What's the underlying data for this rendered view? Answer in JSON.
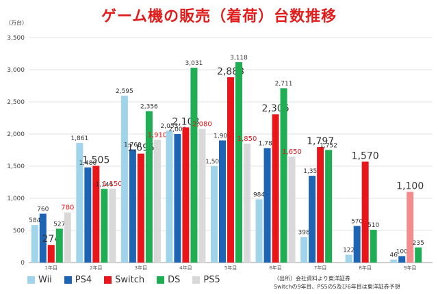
{
  "header": {
    "title": "ゲーム機の販売（着荷）台数推移",
    "unit": "（万台）"
  },
  "source": {
    "line1": "（出所）会社資料より東洋証券",
    "line2": "Switchの9年目、PS5の5及び6年目は東洋証券予想"
  },
  "chart_data": {
    "type": "bar",
    "title": "ゲーム機の販売（着荷）台数推移",
    "ylabel": "（万台）",
    "ylim": [
      0,
      3500
    ],
    "yticks": [
      0,
      500,
      1000,
      1500,
      2000,
      2500,
      3000,
      3500
    ],
    "grid": true,
    "legend_position": "bottom-left",
    "categories": [
      "1年目",
      "2年目",
      "3年目",
      "4年目",
      "5年目",
      "6年目",
      "7年目",
      "8年目",
      "9年目"
    ],
    "series": [
      {
        "name": "Wii",
        "color": "#9fd4ea",
        "values": [
          584,
          1861,
          2595,
          2053,
          1500,
          984,
          398,
          122,
          46
        ]
      },
      {
        "name": "PS4",
        "color": "#1e64b4",
        "values": [
          760,
          1480,
          1760,
          2000,
          1900,
          1780,
          1350,
          570,
          100
        ]
      },
      {
        "name": "Switch",
        "color": "#e8161a",
        "values": [
          274,
          1505,
          1695,
          2103,
          2883,
          2306,
          1797,
          1570,
          1100
        ],
        "projected_color": "#f38c8c"
      },
      {
        "name": "DS",
        "color": "#1fae54",
        "values": [
          527,
          1146,
          2356,
          3031,
          3118,
          2711,
          1752,
          510,
          235
        ]
      },
      {
        "name": "PS5",
        "color": "#d9d9d9",
        "values": [
          780,
          1150,
          1910,
          2080,
          1850,
          1650,
          null,
          null,
          null
        ]
      }
    ],
    "value_labels": {
      "Wii": [
        "584",
        "1,861",
        "2,595",
        "2,053",
        "1,500",
        "984",
        "398",
        "122",
        "46"
      ],
      "PS4": [
        "760",
        "1,480",
        "1,760",
        "2,000",
        "1,900",
        "1,780",
        "1,350",
        "570",
        "100"
      ],
      "Switch": [
        "274",
        "1,505",
        "1,695",
        "2,103",
        "2,883",
        "2,306",
        "1,797",
        "1,570",
        "1,100"
      ],
      "DS": [
        "527",
        "1,146",
        "2,356",
        "3,031",
        "3,118",
        "2,711",
        "1,752",
        "510",
        "235"
      ],
      "PS5": [
        "780",
        "1,150",
        "1,910",
        "2,080",
        "1,850",
        "1,650",
        "",
        "",
        ""
      ]
    },
    "tick_labels": [
      "0",
      "500",
      "1,000",
      "1,500",
      "2,000",
      "2,500",
      "3,000",
      "3,500"
    ]
  }
}
